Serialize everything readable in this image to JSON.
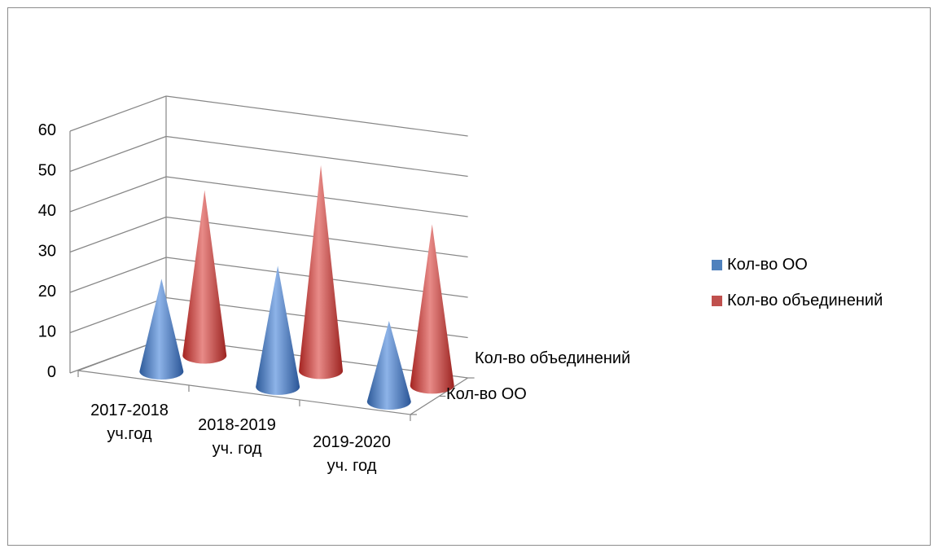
{
  "chart_data": {
    "type": "bar",
    "subtype": "3d-cone",
    "categories": [
      "2017-2018 уч.год",
      "2018-2019 уч. год",
      "2019-2020 уч. год"
    ],
    "category_lines": [
      [
        "2017-2018",
        "уч.год"
      ],
      [
        "2018-2019",
        "уч. год"
      ],
      [
        "2019-2020",
        "уч. год"
      ]
    ],
    "series": [
      {
        "name": "Кол-во ОО",
        "color": "#4f81bd",
        "values": [
          23,
          30,
          20
        ]
      },
      {
        "name": "Кол-во объединений",
        "color": "#c0504d",
        "values": [
          41,
          51,
          40
        ]
      }
    ],
    "ylim": [
      0,
      60
    ],
    "yticks": [
      "0",
      "10",
      "20",
      "30",
      "40",
      "50",
      "60"
    ],
    "depth_labels": [
      "Кол-во ОО",
      "Кол-во объединений"
    ],
    "grid": true,
    "legend_position": "right"
  }
}
